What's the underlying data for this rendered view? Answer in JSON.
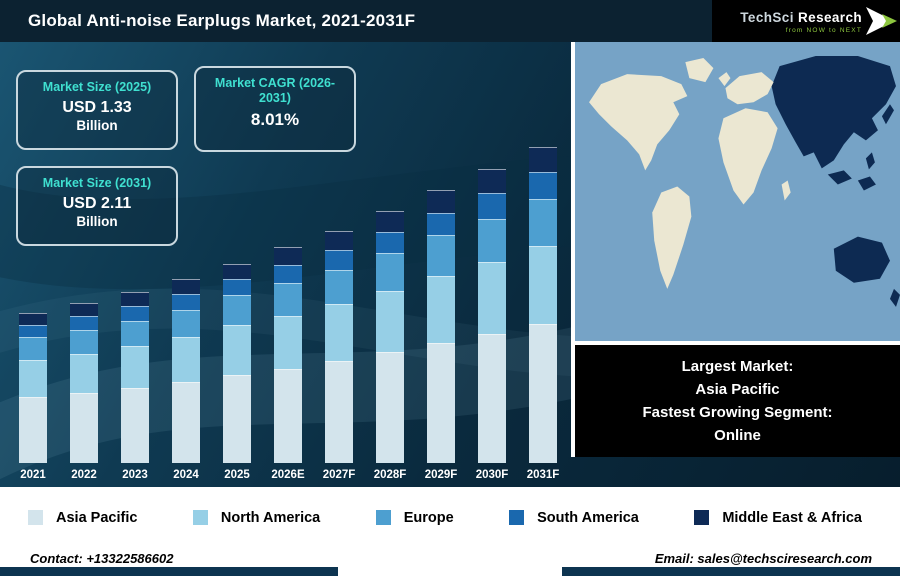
{
  "header": {
    "title": "Global Anti-noise Earplugs Market, 2021-2031F",
    "logo": {
      "brand_1": "TechSci",
      "brand_2": " Research",
      "tagline": "from NOW to NEXT"
    }
  },
  "info_boxes": {
    "size_2025": {
      "label": "Market Size (2025)",
      "value": "USD 1.33",
      "unit": "Billion"
    },
    "cagr": {
      "label": "Market CAGR (2026-2031)",
      "value": "8.01%"
    },
    "size_2031": {
      "label": "Market Size (2031)",
      "value": "USD 2.11",
      "unit": "Billion"
    }
  },
  "chart_data": {
    "type": "bar",
    "stacked": true,
    "title": "Global Anti-noise Earplugs Market, 2021-2031F",
    "categories": [
      "2021",
      "2022",
      "2023",
      "2024",
      "2025",
      "2026E",
      "2027F",
      "2028F",
      "2029F",
      "2030F",
      "2031F"
    ],
    "series": [
      {
        "name": "Asia Pacific",
        "color": "#d3e4ec",
        "values": [
          0.44,
          0.47,
          0.5,
          0.54,
          0.59,
          0.63,
          0.68,
          0.74,
          0.8,
          0.86,
          0.93
        ]
      },
      {
        "name": "North America",
        "color": "#96cfe6",
        "values": [
          0.25,
          0.26,
          0.28,
          0.3,
          0.33,
          0.35,
          0.38,
          0.41,
          0.45,
          0.48,
          0.52
        ]
      },
      {
        "name": "Europe",
        "color": "#4d9fd0",
        "values": [
          0.15,
          0.16,
          0.17,
          0.18,
          0.2,
          0.22,
          0.23,
          0.25,
          0.27,
          0.29,
          0.31
        ]
      },
      {
        "name": "South America",
        "color": "#1a68ae",
        "values": [
          0.08,
          0.09,
          0.1,
          0.11,
          0.11,
          0.12,
          0.13,
          0.14,
          0.15,
          0.17,
          0.18
        ]
      },
      {
        "name": "Middle East & Africa",
        "color": "#0e2a56",
        "values": [
          0.08,
          0.09,
          0.09,
          0.1,
          0.1,
          0.12,
          0.13,
          0.14,
          0.15,
          0.16,
          0.17
        ]
      }
    ],
    "totals": [
      1.0,
      1.07,
      1.14,
      1.23,
      1.33,
      1.44,
      1.55,
      1.68,
      1.82,
      1.96,
      2.11
    ],
    "ylim": [
      0,
      2.2
    ],
    "legend_position": "bottom",
    "grid": false
  },
  "map": {
    "highlight_region": "Asia Pacific",
    "ocean_color": "#76a3c6",
    "land_color": "#ebe7d2",
    "highlight_color": "#0d2a52"
  },
  "callout": {
    "lines": [
      "Largest Market:",
      "Asia Pacific",
      "Fastest Growing Segment:",
      "Online"
    ]
  },
  "footer": {
    "contact": "Contact: +13322586602",
    "email": "Email: sales@techsciresearch.com"
  }
}
